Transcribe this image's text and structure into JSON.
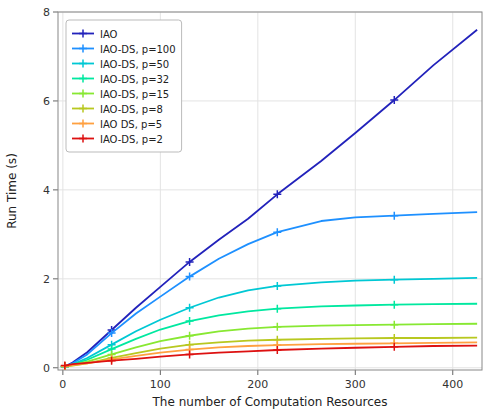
{
  "chart_data": {
    "type": "line",
    "xlabel": "The number of Computation Resources",
    "ylabel": "Run Time (s)",
    "x": [
      2,
      10,
      25,
      50,
      75,
      100,
      130,
      160,
      190,
      220,
      265,
      300,
      340,
      380,
      425
    ],
    "series": [
      {
        "name": "IAO",
        "color": "#2222bb",
        "marker": "plus",
        "values": [
          0.03,
          0.12,
          0.35,
          0.85,
          1.35,
          1.82,
          2.38,
          2.88,
          3.35,
          3.9,
          4.65,
          5.28,
          6.02,
          6.8,
          7.6
        ]
      },
      {
        "name": "IAO-DS, p=100",
        "color": "#1e90ff",
        "marker": "plus",
        "values": [
          0.03,
          0.1,
          0.3,
          0.78,
          1.22,
          1.6,
          2.05,
          2.45,
          2.78,
          3.05,
          3.3,
          3.38,
          3.42,
          3.46,
          3.5
        ]
      },
      {
        "name": "IAO-DS, p=50",
        "color": "#00c8d4",
        "marker": "plus",
        "values": [
          0.03,
          0.08,
          0.22,
          0.52,
          0.82,
          1.08,
          1.35,
          1.58,
          1.74,
          1.84,
          1.92,
          1.96,
          1.98,
          2.0,
          2.02
        ]
      },
      {
        "name": "IAO-DS, p=32",
        "color": "#00e8a0",
        "marker": "plus",
        "values": [
          0.03,
          0.07,
          0.18,
          0.42,
          0.65,
          0.86,
          1.05,
          1.18,
          1.27,
          1.33,
          1.38,
          1.4,
          1.42,
          1.43,
          1.44
        ]
      },
      {
        "name": "IAO-DS, p=15",
        "color": "#88e832",
        "marker": "plus",
        "values": [
          0.03,
          0.06,
          0.14,
          0.3,
          0.46,
          0.6,
          0.72,
          0.82,
          0.88,
          0.92,
          0.95,
          0.96,
          0.97,
          0.98,
          0.99
        ]
      },
      {
        "name": "IAO-DS, p=8",
        "color": "#b8c820",
        "marker": "plus",
        "values": [
          0.03,
          0.05,
          0.1,
          0.22,
          0.33,
          0.43,
          0.52,
          0.57,
          0.61,
          0.63,
          0.65,
          0.66,
          0.67,
          0.67,
          0.68
        ]
      },
      {
        "name": "IAO DS, p=5",
        "color": "#ffa040",
        "marker": "plus",
        "values": [
          0.04,
          0.06,
          0.1,
          0.19,
          0.27,
          0.34,
          0.41,
          0.46,
          0.49,
          0.51,
          0.53,
          0.54,
          0.55,
          0.56,
          0.57
        ]
      },
      {
        "name": "IAO-DS, p=2",
        "color": "#dd1111",
        "marker": "plus",
        "values": [
          0.05,
          0.08,
          0.11,
          0.16,
          0.2,
          0.25,
          0.3,
          0.34,
          0.37,
          0.4,
          0.43,
          0.45,
          0.47,
          0.49,
          0.5
        ]
      }
    ],
    "xlim": [
      -5,
      430
    ],
    "ylim": [
      -0.05,
      8
    ],
    "xticks": [
      0,
      100,
      200,
      300,
      400
    ],
    "yticks": [
      0,
      2,
      4,
      6,
      8
    ],
    "grid": true,
    "legend": "upper left"
  }
}
